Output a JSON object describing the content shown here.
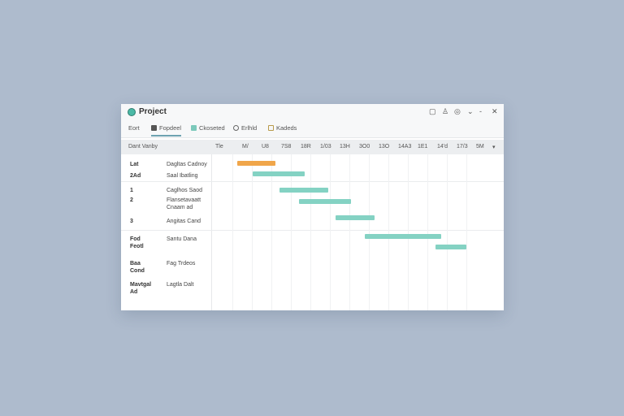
{
  "window": {
    "title": "Project",
    "controls": [
      "▢",
      "♙",
      "◎",
      "⌄",
      "-",
      "✕"
    ]
  },
  "tabs": [
    {
      "label": "Eort",
      "icon": "none"
    },
    {
      "label": "Fopdeel",
      "icon": "square-icon",
      "active": true
    },
    {
      "label": "Ckoseted",
      "icon": "calendar-icon"
    },
    {
      "label": "Erlhld",
      "icon": "link-icon"
    },
    {
      "label": "Kadeds",
      "icon": "folder-icon"
    }
  ],
  "header": {
    "task_col": "Dant Vanby",
    "columns": [
      "Tle",
      "M/",
      "U8",
      "7S8",
      "18R",
      "1/03",
      "13H",
      "3O0",
      "13O",
      "14A3",
      "1E1",
      "14'd",
      "17/3",
      "5M"
    ],
    "menu": "▾"
  },
  "groups": [
    {
      "rows": [
        {
          "id": "Lat",
          "name": "Dagltas Cadnoy"
        },
        {
          "id": "2Ad",
          "name": "Saal Ibatling"
        }
      ]
    },
    {
      "rows": [
        {
          "id": "1",
          "name": "Caglhos Saod"
        },
        {
          "id": "2",
          "name": "Flansetavaatt Cnaam ad"
        },
        {
          "id": "3",
          "name": "Angitas Cand"
        }
      ]
    },
    {
      "rows": [
        {
          "id": "Fod Feotl",
          "name": "Santu Dana"
        },
        {
          "id": "Baa Cond",
          "name": "Fag Trdeos"
        },
        {
          "id": "Mavtgal Ad",
          "name": "Lagtla Dalt"
        }
      ]
    }
  ],
  "bars": [
    {
      "start": 1.25,
      "end": 3.2,
      "row": 0,
      "color": "#f0a64a"
    },
    {
      "start": 2.05,
      "end": 4.7,
      "row": 1,
      "color": "#84d2c3"
    },
    {
      "start": 3.4,
      "end": 5.9,
      "row": 2,
      "color": "#84d2c3"
    },
    {
      "start": 4.4,
      "end": 7.1,
      "row": 3,
      "color": "#84d2c3"
    },
    {
      "start": 6.3,
      "end": 8.3,
      "row": 4,
      "color": "#84d2c3"
    },
    {
      "start": 7.8,
      "end": 11.7,
      "row": 5,
      "color": "#84d2c3"
    },
    {
      "start": 11.4,
      "end": 13.0,
      "row": 6,
      "color": "#84d2c3"
    }
  ]
}
